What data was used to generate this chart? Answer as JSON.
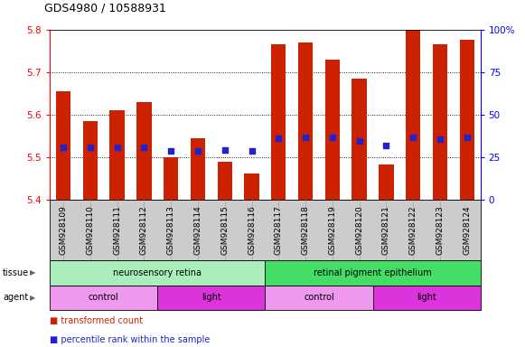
{
  "title": "GDS4980 / 10588931",
  "samples": [
    "GSM928109",
    "GSM928110",
    "GSM928111",
    "GSM928112",
    "GSM928113",
    "GSM928114",
    "GSM928115",
    "GSM928116",
    "GSM928117",
    "GSM928118",
    "GSM928119",
    "GSM928120",
    "GSM928121",
    "GSM928122",
    "GSM928123",
    "GSM928124"
  ],
  "bar_values": [
    5.655,
    5.585,
    5.61,
    5.63,
    5.5,
    5.545,
    5.488,
    5.462,
    5.765,
    5.77,
    5.73,
    5.685,
    5.482,
    5.8,
    5.765,
    5.775
  ],
  "dot_values": [
    5.522,
    5.522,
    5.522,
    5.522,
    5.515,
    5.515,
    5.516,
    5.515,
    5.545,
    5.547,
    5.547,
    5.538,
    5.527,
    5.547,
    5.542,
    5.547
  ],
  "ymin": 5.4,
  "ymax": 5.8,
  "yticks": [
    5.4,
    5.5,
    5.6,
    5.7,
    5.8
  ],
  "right_yticks": [
    0,
    25,
    50,
    75,
    100
  ],
  "bar_color": "#CC2200",
  "dot_color": "#2222CC",
  "tissue_groups": [
    {
      "label": "neurosensory retina",
      "start": 0,
      "end": 8,
      "color": "#AAEEBB"
    },
    {
      "label": "retinal pigment epithelium",
      "start": 8,
      "end": 16,
      "color": "#44DD66"
    }
  ],
  "agent_groups": [
    {
      "label": "control",
      "start": 0,
      "end": 4,
      "color": "#EE99EE"
    },
    {
      "label": "light",
      "start": 4,
      "end": 8,
      "color": "#DD33DD"
    },
    {
      "label": "control",
      "start": 8,
      "end": 12,
      "color": "#EE99EE"
    },
    {
      "label": "light",
      "start": 12,
      "end": 16,
      "color": "#DD33DD"
    }
  ],
  "legend_items": [
    {
      "label": "transformed count",
      "color": "#CC2200"
    },
    {
      "label": "percentile rank within the sample",
      "color": "#2222CC"
    }
  ],
  "xlabel_fontsize": 6.5,
  "title_fontsize": 9,
  "tick_fontsize": 7.5,
  "bar_width": 0.55,
  "xtick_bg_color": "#CCCCCC",
  "plot_bg_color": "#FFFFFF"
}
